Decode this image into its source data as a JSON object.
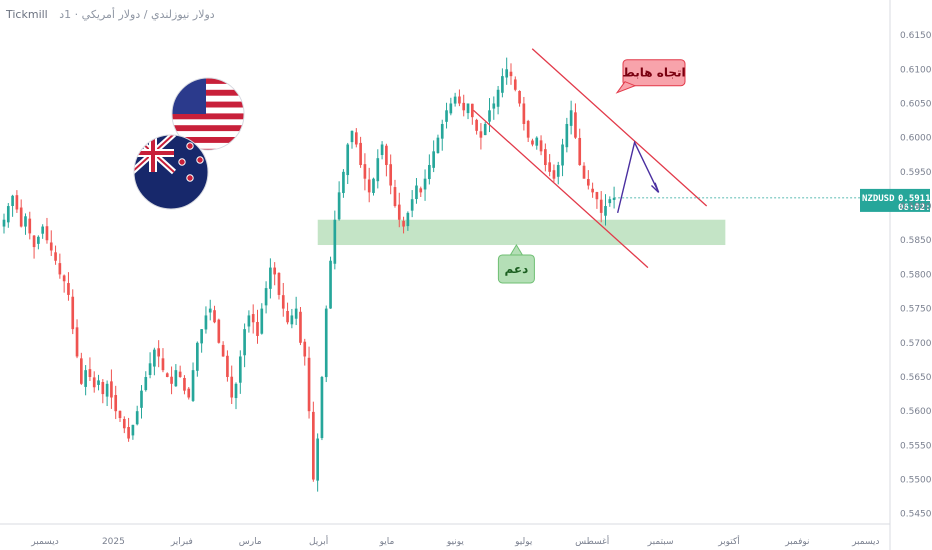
{
  "header": {
    "broker": "Tickmill",
    "title": "دولار نيوزلندي / دولار أمريكي · 1د"
  },
  "chart_data": {
    "type": "candlestick",
    "symbol": "NZDUSD",
    "last_price": "0.59119",
    "countdown": "06:02:01",
    "ylim": [
      0.5435,
      0.6175
    ],
    "y_ticks": [
      0.615,
      0.61,
      0.605,
      0.6,
      0.595,
      0.59,
      0.585,
      0.58,
      0.575,
      0.57,
      0.565,
      0.56,
      0.555,
      0.55,
      0.545
    ],
    "x_ticks": [
      "ديسمبر",
      "2025",
      "فبراير",
      "مارس",
      "أبريل",
      "مايو",
      "يونيو",
      "يوليو",
      "أغسطس",
      "سبتمبر",
      "أكتوبر",
      "نوفمبر",
      "ديسمبر"
    ],
    "series_close": [
      0.588,
      0.59,
      0.5915,
      0.5895,
      0.587,
      0.5885,
      0.586,
      0.584,
      0.5855,
      0.587,
      0.585,
      0.5835,
      0.582,
      0.58,
      0.579,
      0.577,
      0.572,
      0.568,
      0.564,
      0.566,
      0.565,
      0.5635,
      0.5645,
      0.5625,
      0.564,
      0.562,
      0.56,
      0.559,
      0.5575,
      0.556,
      0.558,
      0.56,
      0.563,
      0.565,
      0.567,
      0.569,
      0.568,
      0.566,
      0.565,
      0.564,
      0.566,
      0.565,
      0.563,
      0.562,
      0.566,
      0.57,
      0.572,
      0.574,
      0.575,
      0.573,
      0.57,
      0.568,
      0.565,
      0.562,
      0.564,
      0.568,
      0.572,
      0.574,
      0.573,
      0.571,
      0.575,
      0.578,
      0.581,
      0.58,
      0.577,
      0.575,
      0.573,
      0.574,
      0.575,
      0.57,
      0.568,
      0.56,
      0.55,
      0.556,
      0.565,
      0.575,
      0.582,
      0.588,
      0.592,
      0.595,
      0.599,
      0.601,
      0.599,
      0.596,
      0.594,
      0.592,
      0.594,
      0.597,
      0.599,
      0.596,
      0.593,
      0.59,
      0.588,
      0.587,
      0.589,
      0.591,
      0.593,
      0.592,
      0.594,
      0.596,
      0.598,
      0.6,
      0.602,
      0.604,
      0.605,
      0.606,
      0.605,
      0.604,
      0.605,
      0.603,
      0.601,
      0.6,
      0.602,
      0.604,
      0.605,
      0.607,
      0.609,
      0.61,
      0.609,
      0.607,
      0.605,
      0.602,
      0.6,
      0.599,
      0.6,
      0.598,
      0.596,
      0.595,
      0.594,
      0.596,
      0.599,
      0.602,
      0.604,
      0.6,
      0.596,
      0.594,
      0.593,
      0.592,
      0.591,
      0.589,
      0.59,
      0.591,
      0.5912
    ],
    "support_zone": {
      "label": "دعم",
      "range": [
        0.5843,
        0.588
      ]
    },
    "trend_label": "اتجاه هابط",
    "colors": {
      "up": "#26a69a",
      "down": "#ef5350",
      "channel": "#e23a4a",
      "zone": "#a5d6a7",
      "arrow": "#4a2fa0",
      "price_tag": "#26a69a"
    }
  }
}
